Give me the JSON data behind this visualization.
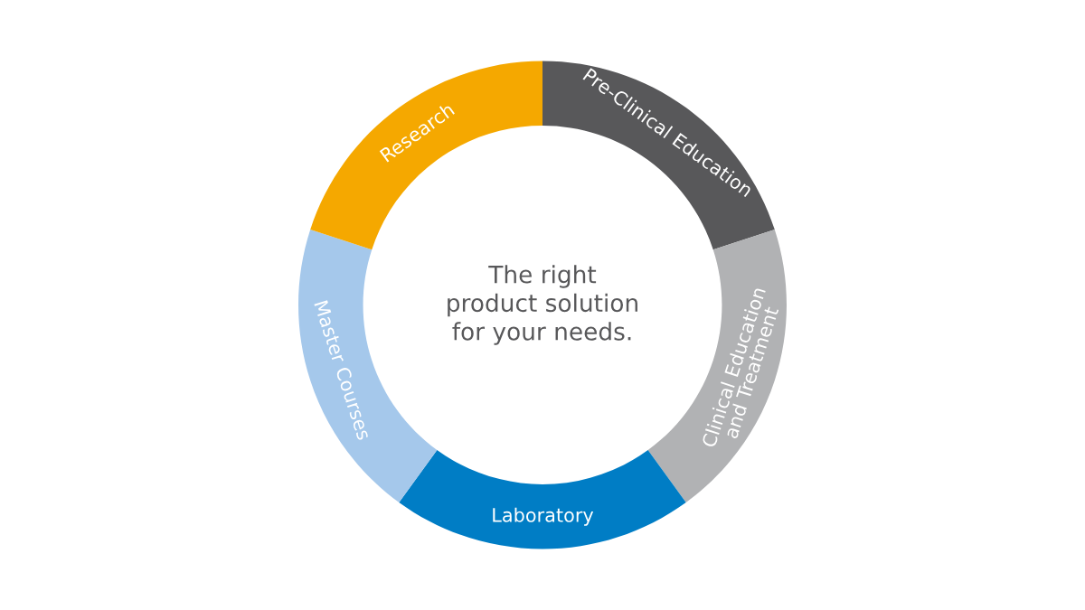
{
  "chart_data": {
    "type": "donut",
    "categories": [
      "Pre-Clinical Education",
      "Clinical Education\nand Treatment",
      "Laboratory",
      "Master Courses",
      "Research"
    ],
    "values": [
      20,
      20,
      20,
      20,
      20
    ],
    "colors": [
      "#58585a",
      "#b1b2b4",
      "#007dc5",
      "#a5c8eb",
      "#f5a800"
    ],
    "annotations": [
      "The right\nproduct solution\nfor your needs."
    ],
    "legend": false
  }
}
